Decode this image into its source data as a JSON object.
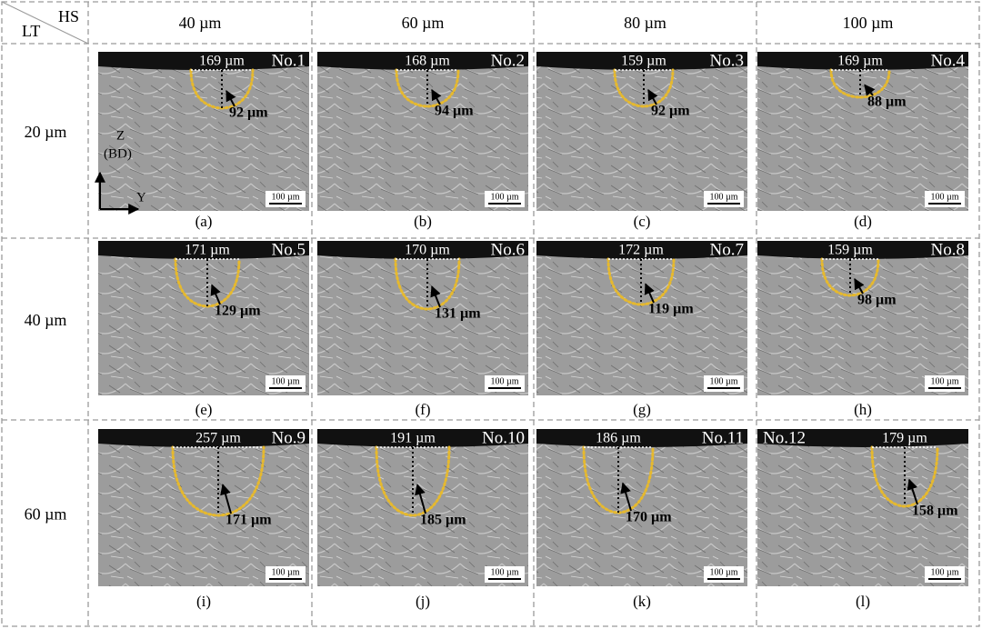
{
  "header": {
    "corner_left": "LT",
    "corner_right": "HS",
    "columns": [
      "40 µm",
      "60 µm",
      "80 µm",
      "100 µm"
    ]
  },
  "axes": {
    "z": "Z",
    "z_note": "(BD)",
    "y": "Y"
  },
  "rows": [
    {
      "label": "20 µm",
      "panels": [
        {
          "no": "No.1",
          "width": "169 µm",
          "depth": "92 µm",
          "scale_bar": "100 µm",
          "caption": "(a)"
        },
        {
          "no": "No.2",
          "width": "168 µm",
          "depth": "94 µm",
          "scale_bar": "100 µm",
          "caption": "(b)"
        },
        {
          "no": "No.3",
          "width": "159 µm",
          "depth": "92 µm",
          "scale_bar": "100 µm",
          "caption": "(c)"
        },
        {
          "no": "No.4",
          "width": "169 µm",
          "depth": "88 µm",
          "scale_bar": "100 µm",
          "caption": "(d)"
        }
      ]
    },
    {
      "label": "40 µm",
      "panels": [
        {
          "no": "No.5",
          "width": "171 µm",
          "depth": "129 µm",
          "scale_bar": "100 µm",
          "caption": "(e)"
        },
        {
          "no": "No.6",
          "width": "170 µm",
          "depth": "131 µm",
          "scale_bar": "100 µm",
          "caption": "(f)"
        },
        {
          "no": "No.7",
          "width": "172 µm",
          "depth": "119 µm",
          "scale_bar": "100 µm",
          "caption": "(g)"
        },
        {
          "no": "No.8",
          "width": "159 µm",
          "depth": "98 µm",
          "scale_bar": "100 µm",
          "caption": "(h)"
        }
      ]
    },
    {
      "label": "60 µm",
      "panels": [
        {
          "no": "No.9",
          "width": "257 µm",
          "depth": "171 µm",
          "scale_bar": "100 µm",
          "caption": "(i)"
        },
        {
          "no": "No.10",
          "width": "191 µm",
          "depth": "185 µm",
          "scale_bar": "100 µm",
          "caption": "(j)"
        },
        {
          "no": "No.11",
          "width": "186 µm",
          "depth": "170 µm",
          "scale_bar": "100 µm",
          "caption": "(k)"
        },
        {
          "no": "No.12",
          "width": "179 µm",
          "depth": "158 µm",
          "scale_bar": "100 µm",
          "caption": "(l)"
        }
      ]
    }
  ]
}
